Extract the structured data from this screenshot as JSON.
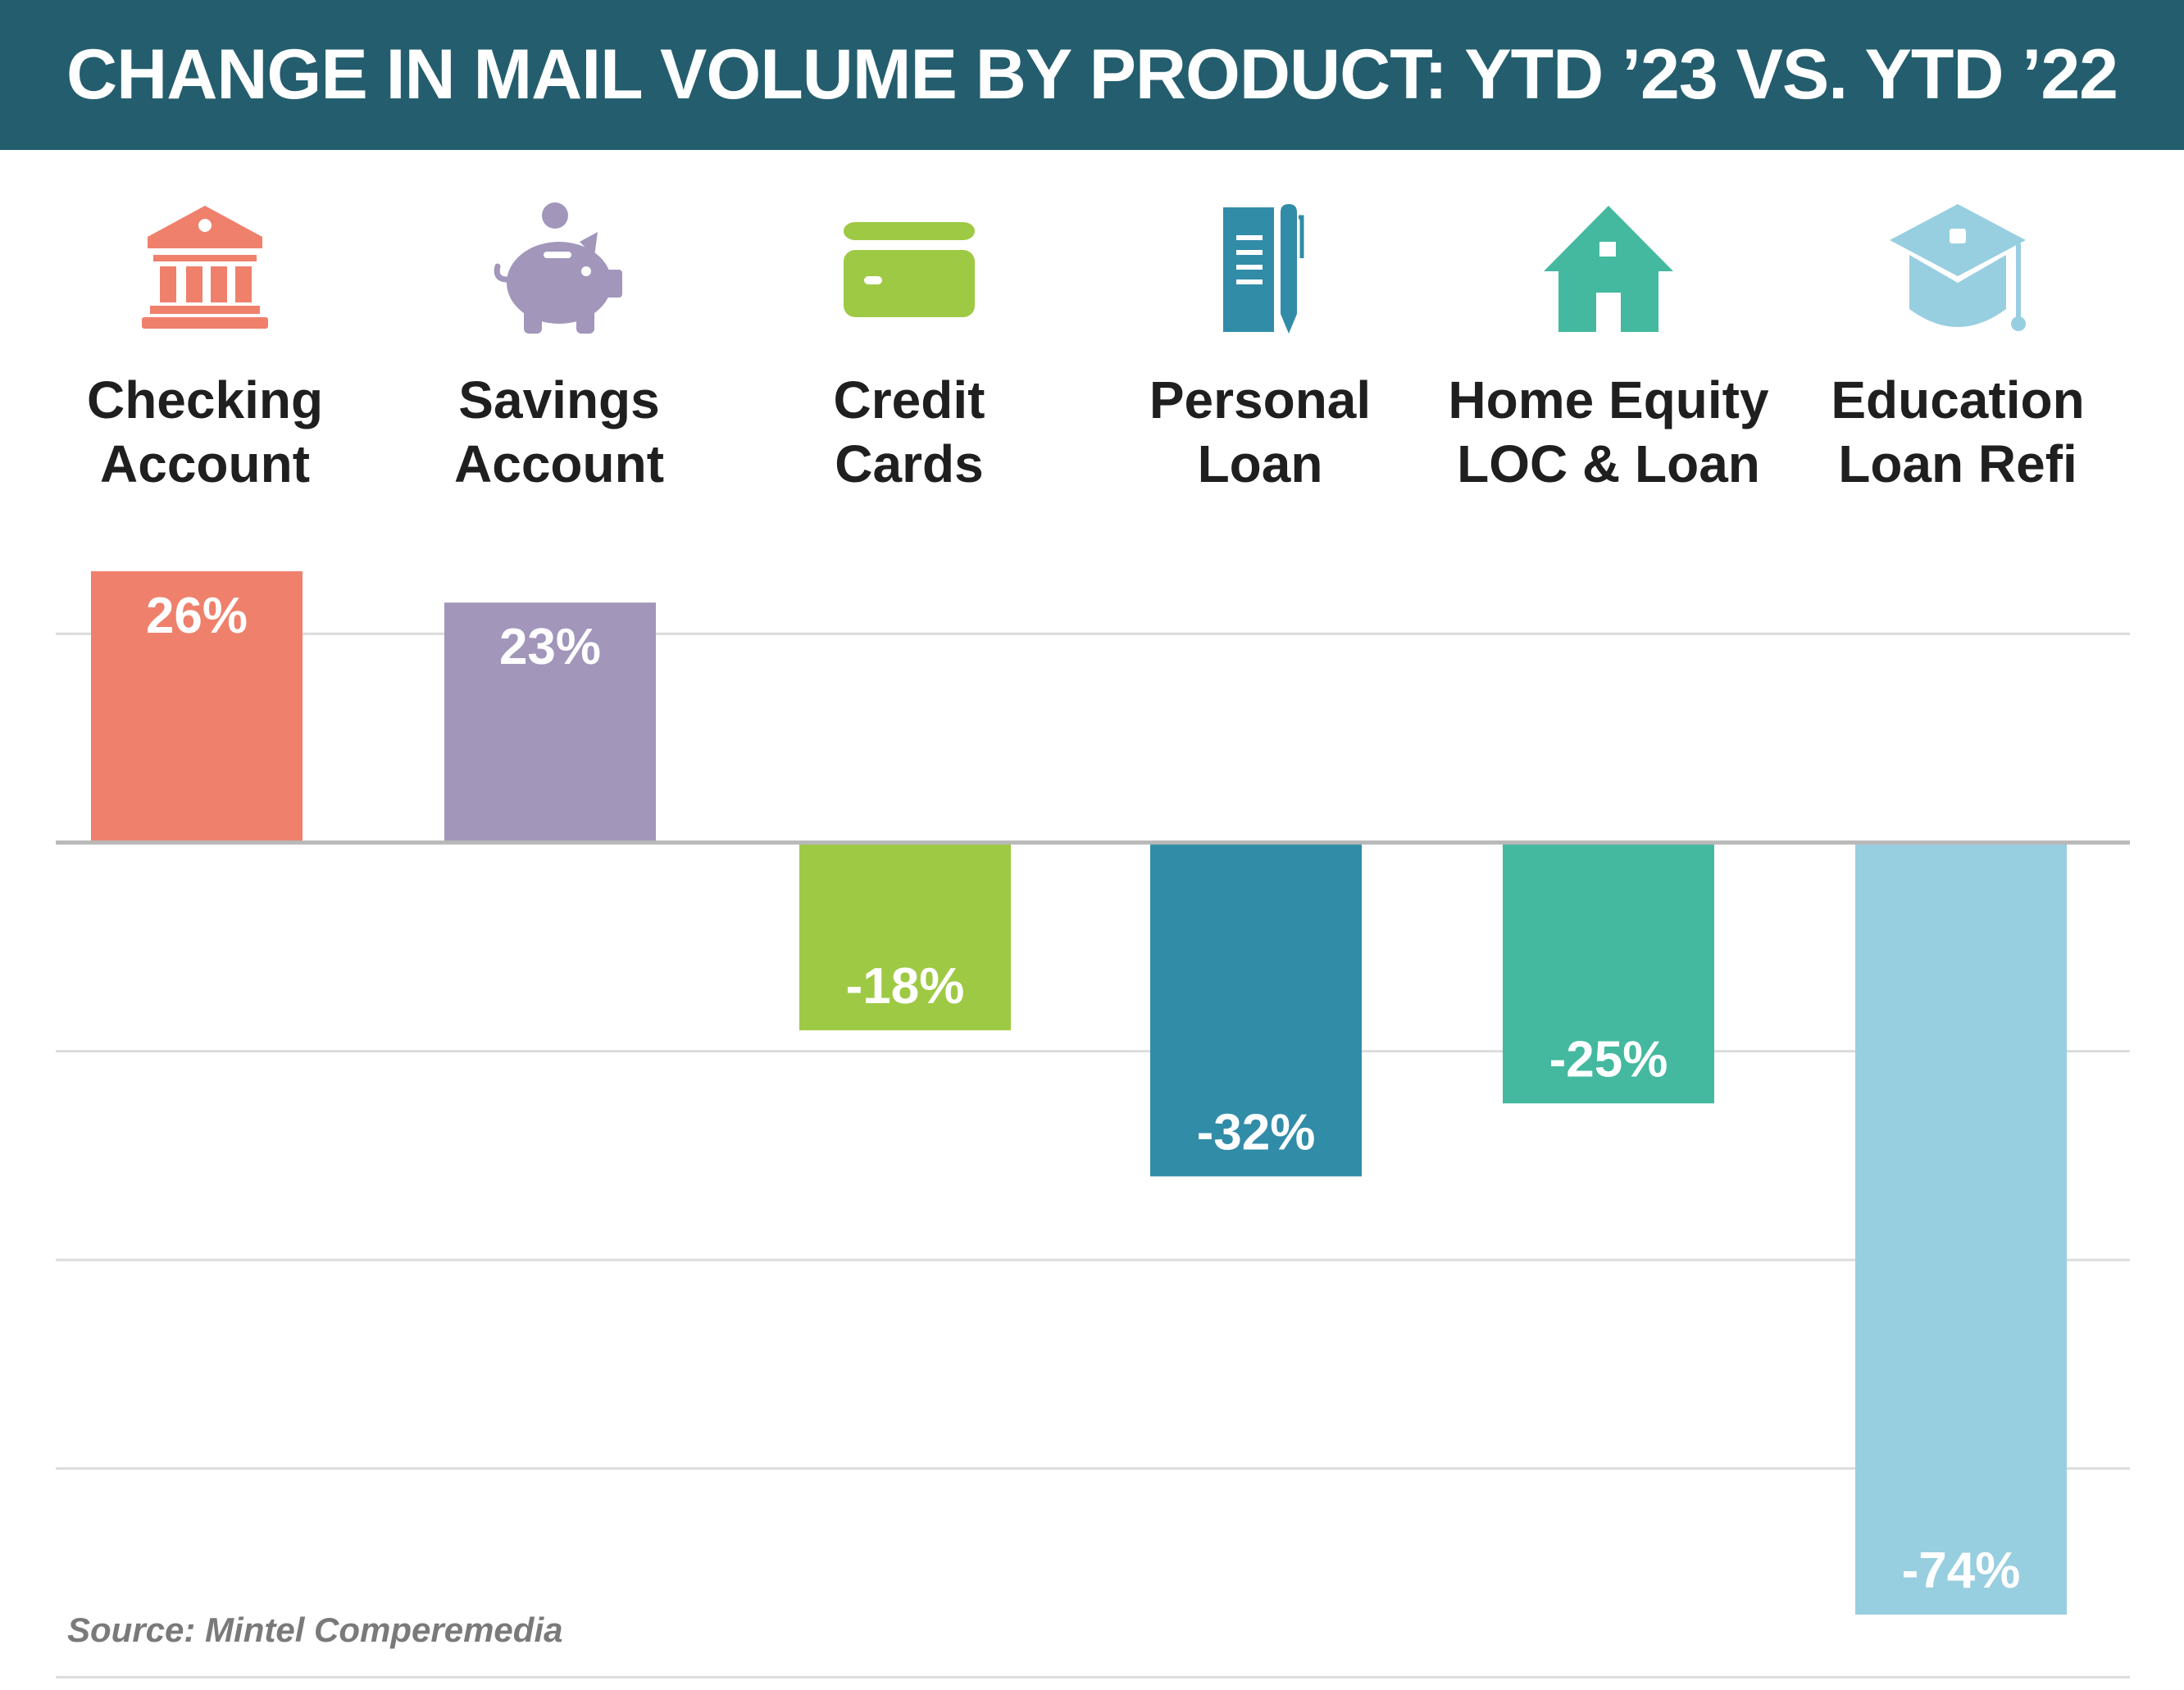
{
  "title": "CHANGE IN MAIL VOLUME BY PRODUCT: YTD ’23 VS. YTD ’22",
  "source": "Source: Mintel Comperemedia",
  "categories": [
    {
      "line1": "Checking",
      "line2": "Account",
      "icon": "bank-icon",
      "color": "#ef806c"
    },
    {
      "line1": "Savings",
      "line2": "Account",
      "icon": "piggy-bank-icon",
      "color": "#a296bb"
    },
    {
      "line1": "Credit",
      "line2": "Cards",
      "icon": "credit-card-icon",
      "color": "#9ec944"
    },
    {
      "line1": "Personal",
      "line2": "Loan",
      "icon": "notepad-pen-icon",
      "color": "#318ca8"
    },
    {
      "line1": "Home Equity",
      "line2": "LOC & Loan",
      "icon": "house-icon",
      "color": "#44b99f"
    },
    {
      "line1": "Education",
      "line2": "Loan Refi",
      "icon": "graduation-cap-icon",
      "color": "#98cfe0"
    }
  ],
  "chart_data": {
    "type": "bar",
    "categories": [
      "Checking Account",
      "Savings Account",
      "Credit Cards",
      "Personal Loan",
      "Home Equity LOC & Loan",
      "Education Loan Refi"
    ],
    "values": [
      26,
      23,
      -18,
      -32,
      -25,
      -74
    ],
    "data_labels": [
      "26%",
      "23%",
      "-18%",
      "-32%",
      "-25%",
      "-74%"
    ],
    "unit": "%",
    "ylim": [
      -80,
      27
    ],
    "gridlines": [
      20,
      -20,
      -40,
      -60,
      -80
    ],
    "grid": true,
    "colors": [
      "#ef806c",
      "#a296bb",
      "#9ec944",
      "#318ca8",
      "#44b99f",
      "#98cfe0"
    ]
  }
}
